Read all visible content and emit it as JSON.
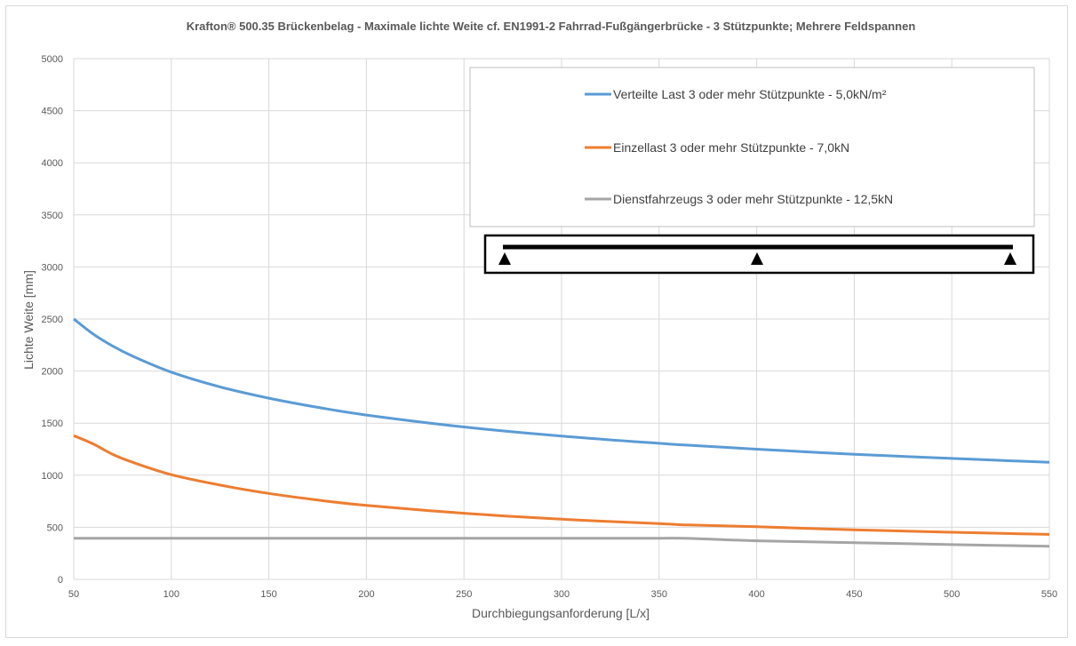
{
  "chart_data": {
    "type": "line",
    "title": "Krafton® 500.35 Brückenbelag  - Maximale lichte Weite cf. EN1991-2 Fahrrad-Fußgängerbrücke - 3 Stützpunkte; Mehrere Feldspannen",
    "xlabel": "Durchbiegungsanforderung  [L/x]",
    "ylabel": "Lichte Weite [mm]",
    "xlim": [
      50,
      550
    ],
    "ylim": [
      0,
      5000
    ],
    "x_ticks": [
      50,
      100,
      150,
      200,
      250,
      300,
      350,
      400,
      450,
      500,
      550
    ],
    "y_ticks": [
      0,
      500,
      1000,
      1500,
      2000,
      2500,
      3000,
      3500,
      4000,
      4500,
      5000
    ],
    "grid": "vertical and horizontal",
    "legend_position": "top-right",
    "x": [
      50,
      60,
      70,
      80,
      100,
      125,
      150,
      175,
      200,
      250,
      300,
      350,
      365,
      400,
      450,
      500,
      550
    ],
    "series": [
      {
        "name": "Verteilte Last 3 oder mehr Stützpunkte - 5,0kN/m²",
        "color": "#5b9bd5",
        "values": [
          2500,
          2355,
          2240,
          2145,
          1990,
          1848,
          1740,
          1652,
          1578,
          1463,
          1376,
          1306,
          1288,
          1250,
          1201,
          1161,
          1124
        ]
      },
      {
        "name": "Einzellast 3 oder mehr Stützpunkte  - 7,0kN",
        "color": "#ed7d31",
        "values": [
          1380,
          1300,
          1200,
          1125,
          1005,
          905,
          825,
          762,
          710,
          635,
          578,
          535,
          522,
          505,
          475,
          452,
          432
        ]
      },
      {
        "name": "Dienstfahrzeugs 3 oder mehr Stützpunkte - 12,5kN",
        "color": "#a5a5a5",
        "values": [
          395,
          395,
          395,
          395,
          395,
          395,
          395,
          395,
          395,
          395,
          395,
          395,
          393,
          370,
          352,
          334,
          318
        ]
      }
    ],
    "inset": {
      "type": "beam-with-supports",
      "supports": 3
    }
  }
}
